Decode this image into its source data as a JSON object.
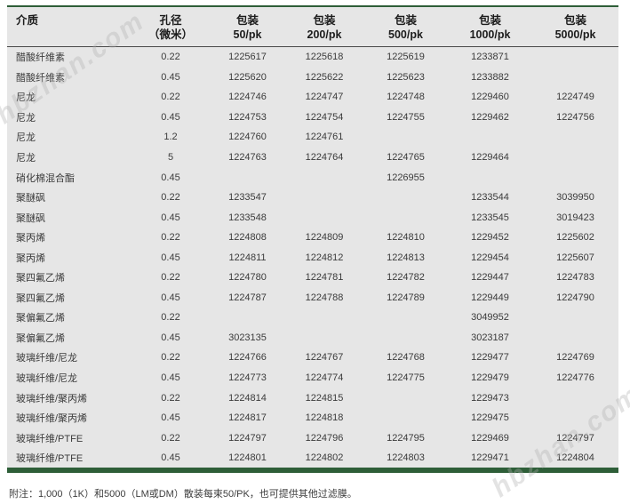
{
  "watermark": "hbzhan.com",
  "colors": {
    "accent_green": "#2e5e38",
    "table_background": "#e6e6e6"
  },
  "table": {
    "headers": [
      {
        "line1": "介质",
        "line2": ""
      },
      {
        "line1": "孔径",
        "line2": "（微米）"
      },
      {
        "line1": "包装",
        "line2": "50/pk"
      },
      {
        "line1": "包装",
        "line2": "200/pk"
      },
      {
        "line1": "包装",
        "line2": "500/pk"
      },
      {
        "line1": "包装",
        "line2": "1000/pk"
      },
      {
        "line1": "包装",
        "line2": "5000/pk"
      }
    ],
    "rows": [
      [
        "醋酸纤维素",
        "0.22",
        "1225617",
        "1225618",
        "1225619",
        "1233871",
        ""
      ],
      [
        "醋酸纤维素",
        "0.45",
        "1225620",
        "1225622",
        "1225623",
        "1233882",
        ""
      ],
      [
        "尼龙",
        "0.22",
        "1224746",
        "1224747",
        "1224748",
        "1229460",
        "1224749"
      ],
      [
        "尼龙",
        "0.45",
        "1224753",
        "1224754",
        "1224755",
        "1229462",
        "1224756"
      ],
      [
        "尼龙",
        "1.2",
        "1224760",
        "1224761",
        "",
        "",
        ""
      ],
      [
        "尼龙",
        "5",
        "1224763",
        "1224764",
        "1224765",
        "1229464",
        ""
      ],
      [
        "硝化棉混合酯",
        "0.45",
        "",
        "",
        "1226955",
        "",
        ""
      ],
      [
        "聚醚砜",
        "0.22",
        "1233547",
        "",
        "",
        "1233544",
        "3039950"
      ],
      [
        "聚醚砜",
        "0.45",
        "1233548",
        "",
        "",
        "1233545",
        "3019423"
      ],
      [
        "聚丙烯",
        "0.22",
        "1224808",
        "1224809",
        "1224810",
        "1229452",
        "1225602"
      ],
      [
        "聚丙烯",
        "0.45",
        "1224811",
        "1224812",
        "1224813",
        "1229454",
        "1225607"
      ],
      [
        "聚四氟乙烯",
        "0.22",
        "1224780",
        "1224781",
        "1224782",
        "1229447",
        "1224783"
      ],
      [
        "聚四氟乙烯",
        "0.45",
        "1224787",
        "1224788",
        "1224789",
        "1229449",
        "1224790"
      ],
      [
        "聚偏氟乙烯",
        "0.22",
        "",
        "",
        "",
        "3049952",
        ""
      ],
      [
        "聚偏氟乙烯",
        "0.45",
        "3023135",
        "",
        "",
        "3023187",
        ""
      ],
      [
        "玻璃纤维/尼龙",
        "0.22",
        "1224766",
        "1224767",
        "1224768",
        "1229477",
        "1224769"
      ],
      [
        "玻璃纤维/尼龙",
        "0.45",
        "1224773",
        "1224774",
        "1224775",
        "1229479",
        "1224776"
      ],
      [
        "玻璃纤维/聚丙烯",
        "0.22",
        "1224814",
        "1224815",
        "",
        "1229473",
        ""
      ],
      [
        "玻璃纤维/聚丙烯",
        "0.45",
        "1224817",
        "1224818",
        "",
        "1229475",
        ""
      ],
      [
        "玻璃纤维/PTFE",
        "0.22",
        "1224797",
        "1224796",
        "1224795",
        "1229469",
        "1224797"
      ],
      [
        "玻璃纤维/PTFE",
        "0.45",
        "1224801",
        "1224802",
        "1224803",
        "1229471",
        "1224804"
      ]
    ]
  },
  "footnote": "附注：1,000（1K）和5000（LM或DM）散装每束50/PK，也可提供其他过滤膜。"
}
